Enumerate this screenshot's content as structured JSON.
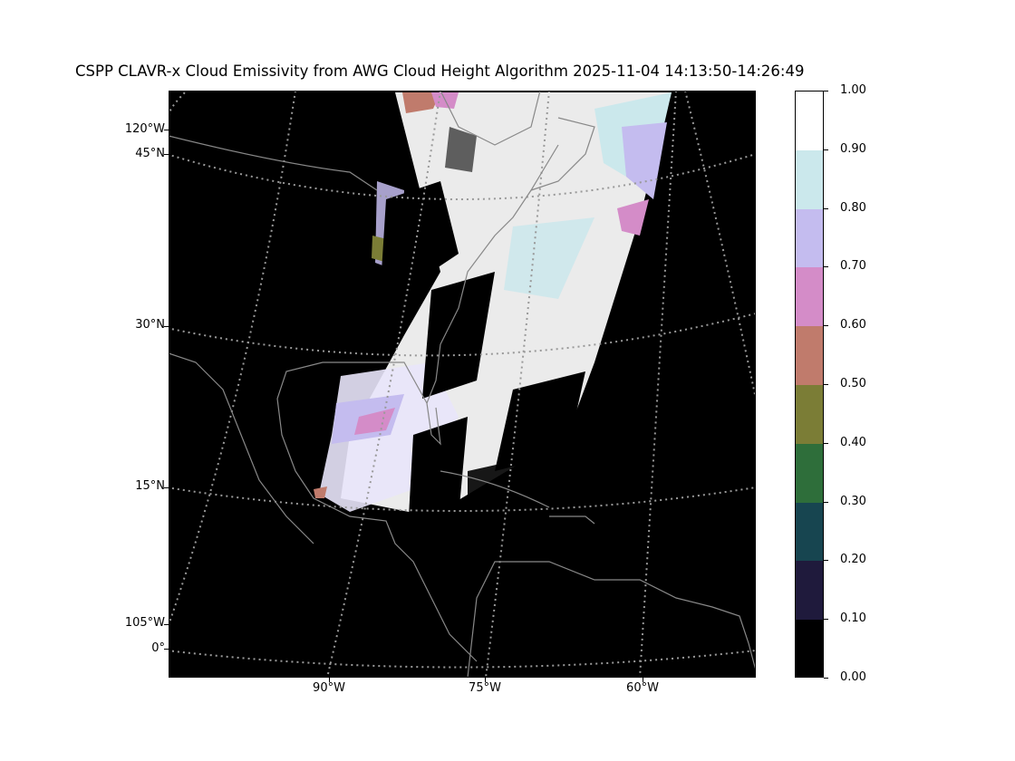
{
  "title": "CSPP CLAVR-x Cloud Emissivity from AWG Cloud Height Algorithm 2025-11-04 14:13:50-14:26:49",
  "map": {
    "lat_labels": [
      {
        "text": "120°W"
      },
      {
        "text": "45°N"
      },
      {
        "text": "30°N"
      },
      {
        "text": "15°N"
      },
      {
        "text": "105°W"
      },
      {
        "text": "0°"
      }
    ],
    "lon_labels": [
      {
        "text": "90°W"
      },
      {
        "text": "75°W"
      },
      {
        "text": "60°W"
      }
    ],
    "colors": {
      "background": "#000000",
      "coastline": "#888888",
      "gridline": "#999999"
    }
  },
  "colorbar": {
    "ticks": [
      "1.00",
      "0.90",
      "0.80",
      "0.70",
      "0.60",
      "0.50",
      "0.40",
      "0.30",
      "0.20",
      "0.10",
      "0.00"
    ],
    "bins": [
      {
        "range": "0.00-0.10",
        "color": "#000000"
      },
      {
        "range": "0.10-0.20",
        "color": "#1f1a3c"
      },
      {
        "range": "0.20-0.30",
        "color": "#174550"
      },
      {
        "range": "0.30-0.40",
        "color": "#2e6e3a"
      },
      {
        "range": "0.40-0.50",
        "color": "#7b7d36"
      },
      {
        "range": "0.50-0.60",
        "color": "#c07b6c"
      },
      {
        "range": "0.60-0.70",
        "color": "#d48cc8"
      },
      {
        "range": "0.70-0.80",
        "color": "#c4bcef"
      },
      {
        "range": "0.80-0.90",
        "color": "#cbe8ec"
      },
      {
        "range": "0.90-1.00",
        "color": "#ffffff"
      }
    ]
  }
}
